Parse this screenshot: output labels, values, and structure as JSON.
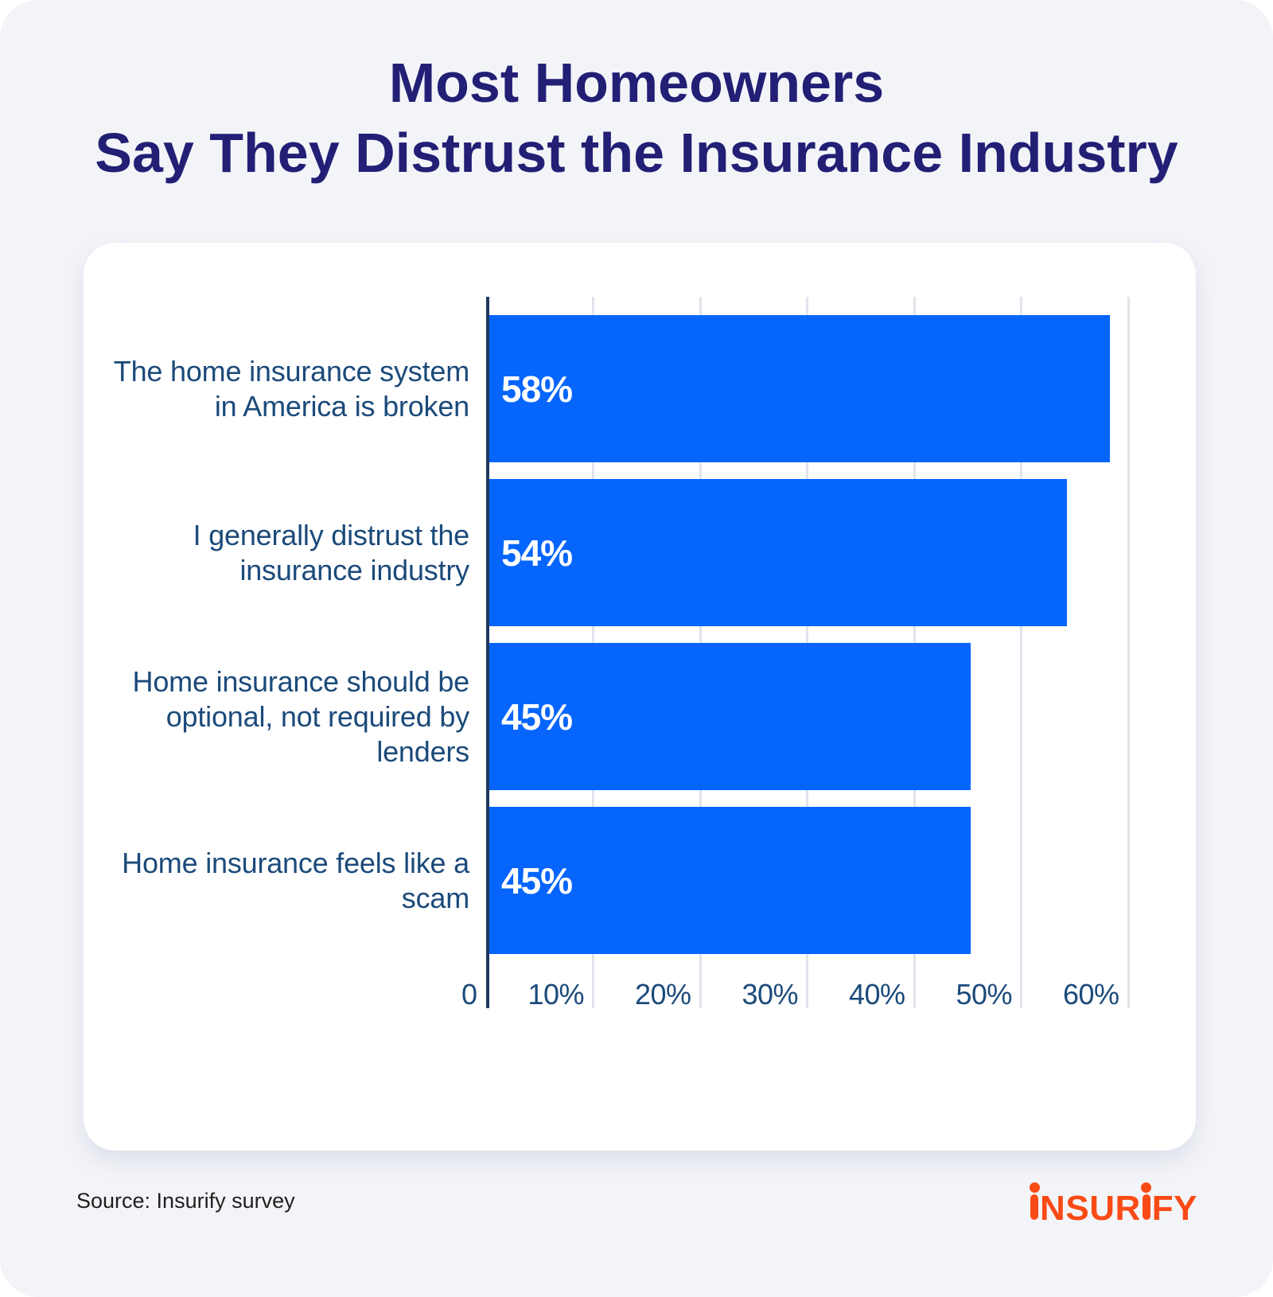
{
  "title": {
    "line1": "Most Homeowners",
    "line2": "Say They Distrust the Insurance Industry"
  },
  "source": {
    "label": "Source: Insurify survey"
  },
  "logo": {
    "text": "insurify"
  },
  "colors": {
    "background": "#f3f4f8",
    "title": "#221f75",
    "bar": "#0565fd",
    "axis": "#1e3a5e",
    "gridline": "#e1e4eb",
    "labels": "#1b4a7a",
    "logo": "#fa4b16"
  },
  "chart_data": {
    "type": "bar",
    "orientation": "horizontal",
    "title": "Most Homeowners Say They Distrust the Insurance Industry",
    "categories": [
      [
        "The home insurance system",
        "in America is broken"
      ],
      [
        "I generally distrust the",
        "insurance industry"
      ],
      [
        "Home insurance should be",
        "optional, not required by",
        "lenders"
      ],
      [
        "Home insurance feels like a",
        "scam"
      ]
    ],
    "values": [
      58,
      54,
      45,
      45
    ],
    "value_labels": [
      "58%",
      "54%",
      "45%",
      "45%"
    ],
    "xticks": [
      "0",
      "10%",
      "20%",
      "30%",
      "40%",
      "50%",
      "60%"
    ],
    "xlabel": "",
    "ylabel": "",
    "xlim": [
      0,
      60
    ],
    "grid": "vertical, every 10%"
  }
}
